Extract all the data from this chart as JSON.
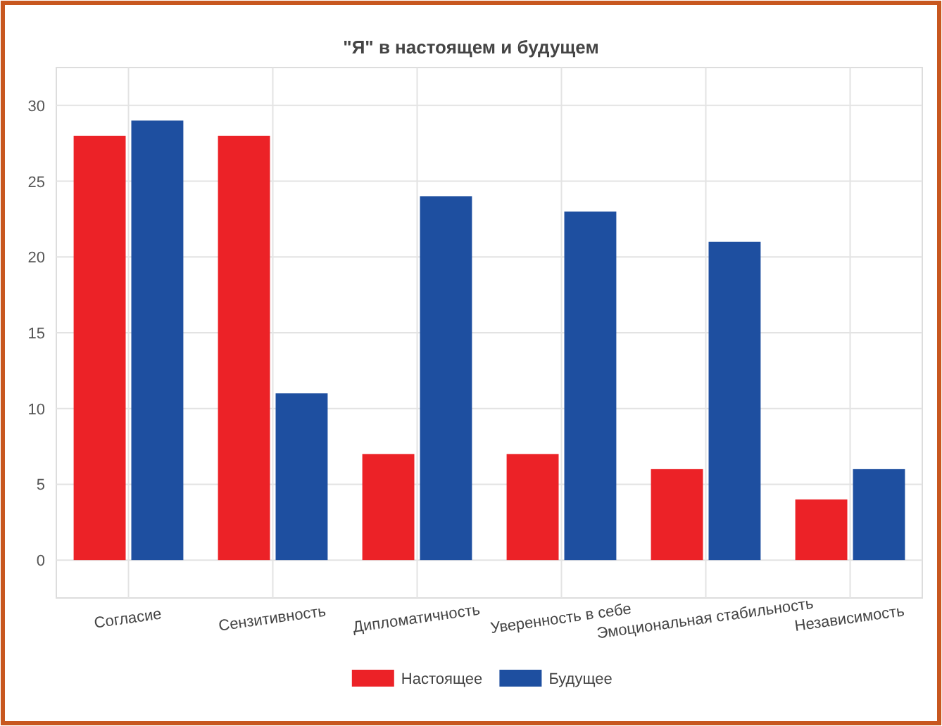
{
  "chart_data": {
    "type": "bar",
    "title": "\"Я\" в настоящем и будущем",
    "categories": [
      "Согласие",
      "Сензитивность",
      "Дипломатичность",
      "Уверенность в себе",
      "Эмоциональная стабильность",
      "Независимость"
    ],
    "series": [
      {
        "name": "Настоящее",
        "color": "#ec2227",
        "values": [
          28,
          28,
          7,
          7,
          6,
          4
        ]
      },
      {
        "name": "Будущее",
        "color": "#1e4fa0",
        "values": [
          29,
          11,
          24,
          23,
          21,
          6
        ]
      }
    ],
    "ylim": [
      -2.5,
      32.5
    ],
    "yticks": [
      0,
      5,
      10,
      15,
      20,
      25,
      30
    ],
    "grid": true,
    "legend": "bottom"
  }
}
